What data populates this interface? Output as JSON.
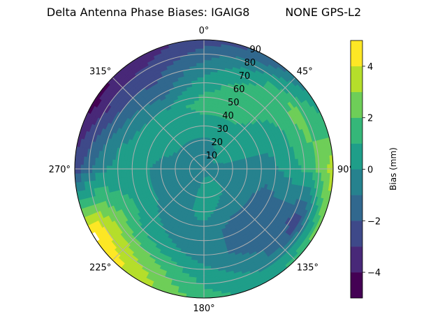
{
  "chart_data": {
    "type": "heatmap",
    "subtype": "polar-filled-contour",
    "title": "Delta Antenna Phase Biases: IGAIG8          NONE GPS-L2",
    "theta_direction": "clockwise",
    "theta_zero": "top",
    "theta_tick_labels": [
      "0°",
      "45°",
      "90°",
      "135°",
      "180°",
      "225°",
      "270°",
      "315°"
    ],
    "r_tick_labels": [
      "10",
      "20",
      "30",
      "40",
      "50",
      "60",
      "70",
      "80",
      "90"
    ],
    "r_range": [
      0,
      90
    ],
    "grid": true,
    "colorbar": {
      "label": "Bias (mm)",
      "range": [
        -5,
        5
      ],
      "levels": [
        -5,
        -4,
        -3,
        -2,
        -1,
        0,
        1,
        2,
        3,
        4,
        5
      ],
      "tick_labels": [
        "−4",
        "−2",
        "0",
        "2",
        "4"
      ],
      "ticks": [
        -4,
        -2,
        0,
        2,
        4
      ],
      "colormap": "viridis",
      "colors": [
        "#440154",
        "#482878",
        "#3e4989",
        "#31688e",
        "#26828e",
        "#1f9e89",
        "#35b779",
        "#6ece58",
        "#b5de2b",
        "#fde725"
      ],
      "placement": "right"
    },
    "grid_azimuths": [
      0,
      30,
      60,
      90,
      120,
      150,
      180,
      210,
      240,
      270,
      300,
      330
    ],
    "grid_radii": [
      0,
      15,
      30,
      45,
      60,
      75,
      90
    ],
    "values": [
      [
        -0.3,
        -0.5,
        0.5,
        1.5,
        0.5,
        -1.0,
        -2.5
      ],
      [
        -0.3,
        0.0,
        0.5,
        1.5,
        1.5,
        0.5,
        -2.0
      ],
      [
        -0.3,
        0.3,
        0.5,
        0.5,
        1.0,
        2.5,
        0.5
      ],
      [
        -0.3,
        -0.3,
        -0.5,
        -0.5,
        0.5,
        1.5,
        3.5
      ],
      [
        -0.3,
        -0.5,
        -0.5,
        -1.5,
        -1.5,
        -2.5,
        2.5
      ],
      [
        -0.3,
        0.5,
        -0.5,
        -1.5,
        -1.5,
        -0.5,
        0.5
      ],
      [
        -0.3,
        0.5,
        0.5,
        -0.5,
        -0.5,
        0.5,
        1.5
      ],
      [
        -0.3,
        -0.5,
        -0.5,
        -0.5,
        0.5,
        2.5,
        3.5
      ],
      [
        -0.3,
        -0.5,
        -0.5,
        0.5,
        1.5,
        3.5,
        5.5
      ],
      [
        -0.3,
        -0.5,
        -0.5,
        0.5,
        0.5,
        -0.5,
        -2.5
      ],
      [
        -0.3,
        -0.5,
        0.5,
        0.5,
        -0.5,
        -2.5,
        -4.5
      ],
      [
        -0.3,
        -0.5,
        0.5,
        0.5,
        -1.5,
        -2.5,
        -3.5
      ]
    ]
  }
}
